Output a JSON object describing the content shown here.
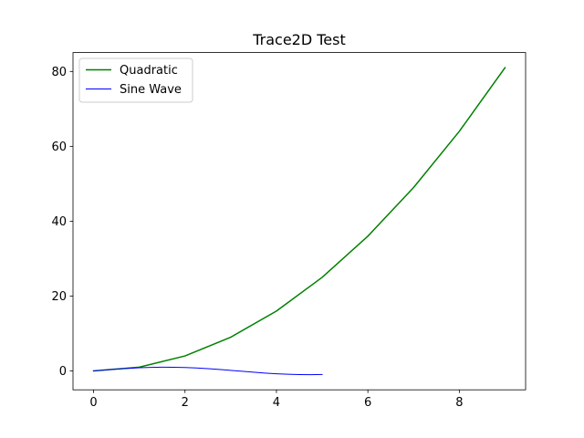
{
  "chart_data": {
    "type": "line",
    "title": "Trace2D Test",
    "xlabel": "",
    "ylabel": "",
    "xlim": [
      -0.45,
      9.45
    ],
    "ylim": [
      -5.05,
      85.05
    ],
    "xticks": [
      0,
      2,
      4,
      6,
      8
    ],
    "yticks": [
      0,
      20,
      40,
      60,
      80
    ],
    "grid": false,
    "legend": "top-left",
    "series": [
      {
        "name": "Quadratic",
        "color": "#008000",
        "x": [
          0,
          1,
          2,
          3,
          4,
          5,
          6,
          7,
          8,
          9
        ],
        "y": [
          0,
          1,
          4,
          9,
          16,
          25,
          36,
          49,
          64,
          81
        ]
      },
      {
        "name": "Sine Wave",
        "color": "#0000ff",
        "x": [
          0,
          0.25,
          0.5,
          0.75,
          1,
          1.25,
          1.5,
          1.75,
          2,
          2.25,
          2.5,
          2.75,
          3,
          3.25,
          3.5,
          3.75,
          4,
          4.25,
          4.5,
          4.75,
          5
        ],
        "y": [
          0,
          0.247,
          0.479,
          0.682,
          0.841,
          0.949,
          0.997,
          0.984,
          0.909,
          0.778,
          0.598,
          0.382,
          0.141,
          -0.108,
          -0.351,
          -0.572,
          -0.757,
          -0.895,
          -0.978,
          -0.999,
          -0.959
        ]
      }
    ]
  }
}
